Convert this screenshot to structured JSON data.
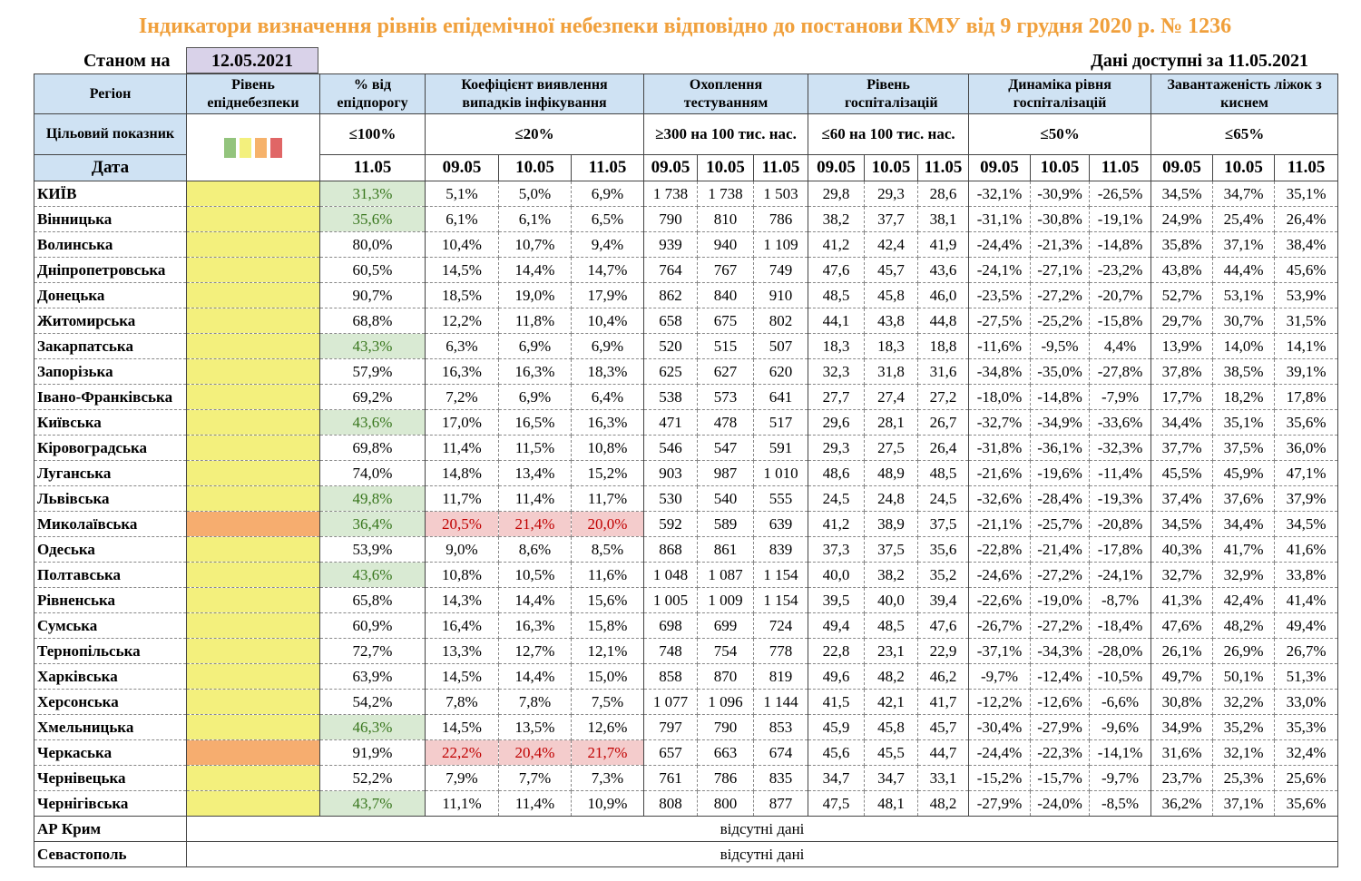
{
  "title": "Індикатори визначення рівнів епідемічної небезпеки відповідно до постанови КМУ від 9 грудня 2020 р. № 1236",
  "as_of_label": "Станом на",
  "as_of_date": "12.05.2021",
  "available_label": "Дані доступні за  11.05.2021",
  "headers": {
    "region": "Регіон",
    "level": "Рівень епіднебезпеки",
    "pct": "% від епідпорогу",
    "coef": "Коефіцієнт виявлення випадків інфікування",
    "test": "Охоплення тестуванням",
    "hosp": "Рівень госпіталізацій",
    "dyn": "Динаміка рівня госпіталізацій",
    "beds": "Завантаженість ліжок з киснем"
  },
  "targets": {
    "label": "Цільовий показник",
    "pct": "≤100%",
    "coef": "≤20%",
    "test": "≥300 на 100 тис. нас.",
    "hosp": "≤60 на 100 тис. нас.",
    "dyn": "≤50%",
    "beds": "≤65%"
  },
  "level_swatches": [
    "#93c47d",
    "#f3f07d",
    "#f6b26b",
    "#e06666"
  ],
  "date_label": "Дата",
  "pct_date": "11.05",
  "dates": [
    "09.05",
    "10.05",
    "11.05"
  ],
  "colors": {
    "yellow": "#f3f07d",
    "orange": "#f6ad6f"
  },
  "rows": [
    {
      "region": "КИЇВ",
      "level": "yellow",
      "pct": "31,3%",
      "pct_ok": true,
      "coef_bad": false,
      "coef": [
        "5,1%",
        "5,0%",
        "6,9%"
      ],
      "test": [
        "1 738",
        "1 738",
        "1 503"
      ],
      "hosp": [
        "29,8",
        "29,3",
        "28,6"
      ],
      "dyn": [
        "-32,1%",
        "-30,9%",
        "-26,5%"
      ],
      "beds": [
        "34,5%",
        "34,7%",
        "35,1%"
      ]
    },
    {
      "region": "Вінницька",
      "level": "yellow",
      "pct": "35,6%",
      "pct_ok": true,
      "coef_bad": false,
      "coef": [
        "6,1%",
        "6,1%",
        "6,5%"
      ],
      "test": [
        "790",
        "810",
        "786"
      ],
      "hosp": [
        "38,2",
        "37,7",
        "38,1"
      ],
      "dyn": [
        "-31,1%",
        "-30,8%",
        "-19,1%"
      ],
      "beds": [
        "24,9%",
        "25,4%",
        "26,4%"
      ]
    },
    {
      "region": "Волинська",
      "level": "yellow",
      "pct": "80,0%",
      "pct_ok": false,
      "coef_bad": false,
      "coef": [
        "10,4%",
        "10,7%",
        "9,4%"
      ],
      "test": [
        "939",
        "940",
        "1 109"
      ],
      "hosp": [
        "41,2",
        "42,4",
        "41,9"
      ],
      "dyn": [
        "-24,4%",
        "-21,3%",
        "-14,8%"
      ],
      "beds": [
        "35,8%",
        "37,1%",
        "38,4%"
      ]
    },
    {
      "region": "Дніпропетровська",
      "level": "yellow",
      "pct": "60,5%",
      "pct_ok": false,
      "coef_bad": false,
      "coef": [
        "14,5%",
        "14,4%",
        "14,7%"
      ],
      "test": [
        "764",
        "767",
        "749"
      ],
      "hosp": [
        "47,6",
        "45,7",
        "43,6"
      ],
      "dyn": [
        "-24,1%",
        "-27,1%",
        "-23,2%"
      ],
      "beds": [
        "43,8%",
        "44,4%",
        "45,6%"
      ]
    },
    {
      "region": "Донецька",
      "level": "yellow",
      "pct": "90,7%",
      "pct_ok": false,
      "coef_bad": false,
      "coef": [
        "18,5%",
        "19,0%",
        "17,9%"
      ],
      "test": [
        "862",
        "840",
        "910"
      ],
      "hosp": [
        "48,5",
        "45,8",
        "46,0"
      ],
      "dyn": [
        "-23,5%",
        "-27,2%",
        "-20,7%"
      ],
      "beds": [
        "52,7%",
        "53,1%",
        "53,9%"
      ]
    },
    {
      "region": "Житомирська",
      "level": "yellow",
      "pct": "68,8%",
      "pct_ok": false,
      "coef_bad": false,
      "coef": [
        "12,2%",
        "11,8%",
        "10,4%"
      ],
      "test": [
        "658",
        "675",
        "802"
      ],
      "hosp": [
        "44,1",
        "43,8",
        "44,8"
      ],
      "dyn": [
        "-27,5%",
        "-25,2%",
        "-15,8%"
      ],
      "beds": [
        "29,7%",
        "30,7%",
        "31,5%"
      ]
    },
    {
      "region": "Закарпатська",
      "level": "yellow",
      "pct": "43,3%",
      "pct_ok": true,
      "coef_bad": false,
      "coef": [
        "6,3%",
        "6,9%",
        "6,9%"
      ],
      "test": [
        "520",
        "515",
        "507"
      ],
      "hosp": [
        "18,3",
        "18,3",
        "18,8"
      ],
      "dyn": [
        "-11,6%",
        "-9,5%",
        "4,4%"
      ],
      "beds": [
        "13,9%",
        "14,0%",
        "14,1%"
      ]
    },
    {
      "region": "Запорізька",
      "level": "yellow",
      "pct": "57,9%",
      "pct_ok": false,
      "coef_bad": false,
      "coef": [
        "16,3%",
        "16,3%",
        "18,3%"
      ],
      "test": [
        "625",
        "627",
        "620"
      ],
      "hosp": [
        "32,3",
        "31,8",
        "31,6"
      ],
      "dyn": [
        "-34,8%",
        "-35,0%",
        "-27,8%"
      ],
      "beds": [
        "37,8%",
        "38,5%",
        "39,1%"
      ]
    },
    {
      "region": "Івано-Франківська",
      "level": "yellow",
      "pct": "69,2%",
      "pct_ok": false,
      "coef_bad": false,
      "coef": [
        "7,2%",
        "6,9%",
        "6,4%"
      ],
      "test": [
        "538",
        "573",
        "641"
      ],
      "hosp": [
        "27,7",
        "27,4",
        "27,2"
      ],
      "dyn": [
        "-18,0%",
        "-14,8%",
        "-7,9%"
      ],
      "beds": [
        "17,7%",
        "18,2%",
        "17,8%"
      ]
    },
    {
      "region": "Київська",
      "level": "yellow",
      "pct": "43,6%",
      "pct_ok": true,
      "coef_bad": false,
      "coef": [
        "17,0%",
        "16,5%",
        "16,3%"
      ],
      "test": [
        "471",
        "478",
        "517"
      ],
      "hosp": [
        "29,6",
        "28,1",
        "26,7"
      ],
      "dyn": [
        "-32,7%",
        "-34,9%",
        "-33,6%"
      ],
      "beds": [
        "34,4%",
        "35,1%",
        "35,6%"
      ]
    },
    {
      "region": "Кіровоградська",
      "level": "yellow",
      "pct": "69,8%",
      "pct_ok": false,
      "coef_bad": false,
      "coef": [
        "11,4%",
        "11,5%",
        "10,8%"
      ],
      "test": [
        "546",
        "547",
        "591"
      ],
      "hosp": [
        "29,3",
        "27,5",
        "26,4"
      ],
      "dyn": [
        "-31,8%",
        "-36,1%",
        "-32,3%"
      ],
      "beds": [
        "37,7%",
        "37,5%",
        "36,0%"
      ]
    },
    {
      "region": "Луганська",
      "level": "yellow",
      "pct": "74,0%",
      "pct_ok": false,
      "coef_bad": false,
      "coef": [
        "14,8%",
        "13,4%",
        "15,2%"
      ],
      "test": [
        "903",
        "987",
        "1 010"
      ],
      "hosp": [
        "48,6",
        "48,9",
        "48,5"
      ],
      "dyn": [
        "-21,6%",
        "-19,6%",
        "-11,4%"
      ],
      "beds": [
        "45,5%",
        "45,9%",
        "47,1%"
      ]
    },
    {
      "region": "Львівська",
      "level": "yellow",
      "pct": "49,8%",
      "pct_ok": true,
      "coef_bad": false,
      "coef": [
        "11,7%",
        "11,4%",
        "11,7%"
      ],
      "test": [
        "530",
        "540",
        "555"
      ],
      "hosp": [
        "24,5",
        "24,8",
        "24,5"
      ],
      "dyn": [
        "-32,6%",
        "-28,4%",
        "-19,3%"
      ],
      "beds": [
        "37,4%",
        "37,6%",
        "37,9%"
      ]
    },
    {
      "region": "Миколаївська",
      "level": "orange",
      "pct": "36,4%",
      "pct_ok": true,
      "coef_bad": true,
      "coef": [
        "20,5%",
        "21,4%",
        "20,0%"
      ],
      "test": [
        "592",
        "589",
        "639"
      ],
      "hosp": [
        "41,2",
        "38,9",
        "37,5"
      ],
      "dyn": [
        "-21,1%",
        "-25,7%",
        "-20,8%"
      ],
      "beds": [
        "34,5%",
        "34,4%",
        "34,5%"
      ]
    },
    {
      "region": "Одеська",
      "level": "yellow",
      "pct": "53,9%",
      "pct_ok": false,
      "coef_bad": false,
      "coef": [
        "9,0%",
        "8,6%",
        "8,5%"
      ],
      "test": [
        "868",
        "861",
        "839"
      ],
      "hosp": [
        "37,3",
        "37,5",
        "35,6"
      ],
      "dyn": [
        "-22,8%",
        "-21,4%",
        "-17,8%"
      ],
      "beds": [
        "40,3%",
        "41,7%",
        "41,6%"
      ]
    },
    {
      "region": "Полтавська",
      "level": "yellow",
      "pct": "43,6%",
      "pct_ok": true,
      "coef_bad": false,
      "coef": [
        "10,8%",
        "10,5%",
        "11,6%"
      ],
      "test": [
        "1 048",
        "1 087",
        "1 154"
      ],
      "hosp": [
        "40,0",
        "38,2",
        "35,2"
      ],
      "dyn": [
        "-24,6%",
        "-27,2%",
        "-24,1%"
      ],
      "beds": [
        "32,7%",
        "32,9%",
        "33,8%"
      ]
    },
    {
      "region": "Рівненська",
      "level": "yellow",
      "pct": "65,8%",
      "pct_ok": false,
      "coef_bad": false,
      "coef": [
        "14,3%",
        "14,4%",
        "15,6%"
      ],
      "test": [
        "1 005",
        "1 009",
        "1 154"
      ],
      "hosp": [
        "39,5",
        "40,0",
        "39,4"
      ],
      "dyn": [
        "-22,6%",
        "-19,0%",
        "-8,7%"
      ],
      "beds": [
        "41,3%",
        "42,4%",
        "41,4%"
      ]
    },
    {
      "region": "Сумська",
      "level": "yellow",
      "pct": "60,9%",
      "pct_ok": false,
      "coef_bad": false,
      "coef": [
        "16,4%",
        "16,3%",
        "15,8%"
      ],
      "test": [
        "698",
        "699",
        "724"
      ],
      "hosp": [
        "49,4",
        "48,5",
        "47,6"
      ],
      "dyn": [
        "-26,7%",
        "-27,2%",
        "-18,4%"
      ],
      "beds": [
        "47,6%",
        "48,2%",
        "49,4%"
      ]
    },
    {
      "region": "Тернопільська",
      "level": "yellow",
      "pct": "72,7%",
      "pct_ok": false,
      "coef_bad": false,
      "coef": [
        "13,3%",
        "12,7%",
        "12,1%"
      ],
      "test": [
        "748",
        "754",
        "778"
      ],
      "hosp": [
        "22,8",
        "23,1",
        "22,9"
      ],
      "dyn": [
        "-37,1%",
        "-34,3%",
        "-28,0%"
      ],
      "beds": [
        "26,1%",
        "26,9%",
        "26,7%"
      ]
    },
    {
      "region": "Харківська",
      "level": "yellow",
      "pct": "63,9%",
      "pct_ok": false,
      "coef_bad": false,
      "coef": [
        "14,5%",
        "14,4%",
        "15,0%"
      ],
      "test": [
        "858",
        "870",
        "819"
      ],
      "hosp": [
        "49,6",
        "48,2",
        "46,2"
      ],
      "dyn": [
        "-9,7%",
        "-12,4%",
        "-10,5%"
      ],
      "beds": [
        "49,7%",
        "50,1%",
        "51,3%"
      ]
    },
    {
      "region": "Херсонська",
      "level": "yellow",
      "pct": "54,2%",
      "pct_ok": false,
      "coef_bad": false,
      "coef": [
        "7,8%",
        "7,8%",
        "7,5%"
      ],
      "test": [
        "1 077",
        "1 096",
        "1 144"
      ],
      "hosp": [
        "41,5",
        "42,1",
        "41,7"
      ],
      "dyn": [
        "-12,2%",
        "-12,6%",
        "-6,6%"
      ],
      "beds": [
        "30,8%",
        "32,2%",
        "33,0%"
      ]
    },
    {
      "region": "Хмельницька",
      "level": "yellow",
      "pct": "46,3%",
      "pct_ok": true,
      "coef_bad": false,
      "coef": [
        "14,5%",
        "13,5%",
        "12,6%"
      ],
      "test": [
        "797",
        "790",
        "853"
      ],
      "hosp": [
        "45,9",
        "45,8",
        "45,7"
      ],
      "dyn": [
        "-30,4%",
        "-27,9%",
        "-9,6%"
      ],
      "beds": [
        "34,9%",
        "35,2%",
        "35,3%"
      ]
    },
    {
      "region": "Черкаська",
      "level": "orange",
      "pct": "91,9%",
      "pct_ok": false,
      "coef_bad": true,
      "coef": [
        "22,2%",
        "20,4%",
        "21,7%"
      ],
      "test": [
        "657",
        "663",
        "674"
      ],
      "hosp": [
        "45,6",
        "45,5",
        "44,7"
      ],
      "dyn": [
        "-24,4%",
        "-22,3%",
        "-14,1%"
      ],
      "beds": [
        "31,6%",
        "32,1%",
        "32,4%"
      ]
    },
    {
      "region": "Чернівецька",
      "level": "yellow",
      "pct": "52,2%",
      "pct_ok": false,
      "coef_bad": false,
      "coef": [
        "7,9%",
        "7,7%",
        "7,3%"
      ],
      "test": [
        "761",
        "786",
        "835"
      ],
      "hosp": [
        "34,7",
        "34,7",
        "33,1"
      ],
      "dyn": [
        "-15,2%",
        "-15,7%",
        "-9,7%"
      ],
      "beds": [
        "23,7%",
        "25,3%",
        "25,6%"
      ]
    },
    {
      "region": "Чернігівська",
      "level": "yellow",
      "pct": "43,7%",
      "pct_ok": true,
      "coef_bad": false,
      "coef": [
        "11,1%",
        "11,4%",
        "10,9%"
      ],
      "test": [
        "808",
        "800",
        "877"
      ],
      "hosp": [
        "47,5",
        "48,1",
        "48,2"
      ],
      "dyn": [
        "-27,9%",
        "-24,0%",
        "-8,5%"
      ],
      "beds": [
        "36,2%",
        "37,1%",
        "35,6%"
      ]
    }
  ],
  "no_data_rows": [
    {
      "region": "АР Крим",
      "text": "відсутні дані"
    },
    {
      "region": "Севастополь",
      "text": "відсутні дані"
    }
  ]
}
